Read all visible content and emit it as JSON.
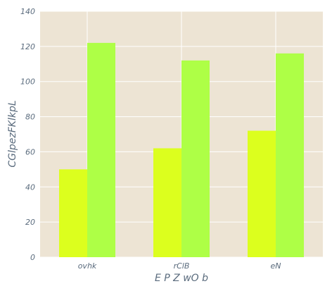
{
  "chart_data": {
    "type": "bar",
    "categories": [
      "ovhk",
      "rClB",
      "eN"
    ],
    "series": [
      {
        "values": [
          50,
          62,
          72
        ],
        "color": "#dcff1e"
      },
      {
        "values": [
          122,
          112,
          116
        ],
        "color": "#aeff46"
      }
    ],
    "xlabel": "E P Z wO b",
    "ylabel": "CGlpezFKlkpL",
    "ylim": [
      0,
      140
    ],
    "yticks": [
      0,
      20,
      40,
      60,
      80,
      100,
      120,
      140
    ],
    "grid": true,
    "background_color": "#ede4d4",
    "grid_color": "#ffffff"
  }
}
